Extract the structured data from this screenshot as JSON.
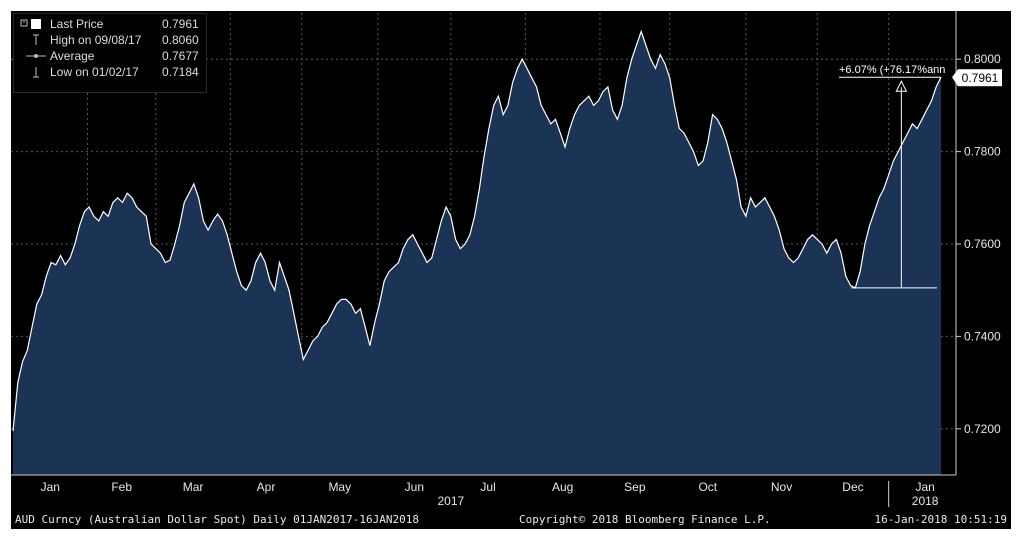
{
  "legend": {
    "last_price_label": "Last Price",
    "last_price_value": "0.7961",
    "high_label": "High on 09/08/17",
    "high_value": "0.8060",
    "average_label": "Average",
    "average_value": "0.7677",
    "low_label": "Low on 01/02/17",
    "low_value": "0.7184"
  },
  "footer": {
    "left": "AUD Curncy (Australian Dollar Spot)  Daily 01JAN2017-16JAN2018",
    "center": "Copyright© 2018 Bloomberg Finance L.P.",
    "right": "16-Jan-2018 10:51:19"
  },
  "colors": {
    "background": "#000000",
    "area_fill": "#1b3355",
    "line": "#ffffff",
    "grid": "#5a5a5a",
    "text": "#e6e6e6"
  },
  "chart_data": {
    "type": "area",
    "title": "",
    "xlabel": "",
    "ylabel": "",
    "ylim": [
      0.71,
      0.81
    ],
    "y_ticks": [
      "0.7200",
      "0.7400",
      "0.7600",
      "0.7800",
      "0.8000"
    ],
    "x_month_labels": [
      "Jan",
      "Feb",
      "Mar",
      "Apr",
      "May",
      "Jun",
      "Jul",
      "Aug",
      "Sep",
      "Oct",
      "Nov",
      "Dec",
      "Jan"
    ],
    "x_year_labels": [
      "2017",
      "2018"
    ],
    "grid": true,
    "last_value_label": "0.7961",
    "annotation": {
      "text": "+6.07% (+76.17%ann",
      "from_value": 0.7505,
      "to_value": 0.7961,
      "from_date": "2017-12-08",
      "to_date": "2018-01-16"
    },
    "series": [
      {
        "values": [
          [
            0,
            0.7195
          ],
          [
            3,
            0.73
          ],
          [
            6,
            0.7345
          ],
          [
            9,
            0.737
          ],
          [
            12,
            0.742
          ],
          [
            15,
            0.747
          ],
          [
            18,
            0.749
          ],
          [
            21,
            0.753
          ],
          [
            24,
            0.756
          ],
          [
            27,
            0.7555
          ],
          [
            30,
            0.7575
          ],
          [
            33,
            0.7555
          ],
          [
            36,
            0.757
          ],
          [
            39,
            0.76
          ],
          [
            42,
            0.764
          ],
          [
            45,
            0.767
          ],
          [
            48,
            0.768
          ],
          [
            51,
            0.766
          ],
          [
            54,
            0.765
          ],
          [
            57,
            0.767
          ],
          [
            60,
            0.766
          ],
          [
            63,
            0.769
          ],
          [
            66,
            0.77
          ],
          [
            69,
            0.769
          ],
          [
            72,
            0.771
          ],
          [
            75,
            0.77
          ],
          [
            78,
            0.768
          ],
          [
            81,
            0.767
          ],
          [
            84,
            0.766
          ],
          [
            87,
            0.76
          ],
          [
            90,
            0.759
          ],
          [
            93,
            0.758
          ],
          [
            96,
            0.756
          ],
          [
            99,
            0.7565
          ],
          [
            102,
            0.76
          ],
          [
            105,
            0.764
          ],
          [
            108,
            0.769
          ],
          [
            111,
            0.771
          ],
          [
            114,
            0.773
          ],
          [
            117,
            0.77
          ],
          [
            120,
            0.765
          ],
          [
            123,
            0.763
          ],
          [
            126,
            0.765
          ],
          [
            129,
            0.7665
          ],
          [
            132,
            0.765
          ],
          [
            135,
            0.762
          ],
          [
            138,
            0.758
          ],
          [
            141,
            0.754
          ],
          [
            144,
            0.751
          ],
          [
            147,
            0.75
          ],
          [
            150,
            0.752
          ],
          [
            153,
            0.756
          ],
          [
            156,
            0.758
          ],
          [
            159,
            0.756
          ],
          [
            162,
            0.752
          ],
          [
            165,
            0.75
          ],
          [
            168,
            0.756
          ],
          [
            171,
            0.753
          ],
          [
            174,
            0.75
          ],
          [
            177,
            0.745
          ],
          [
            180,
            0.74
          ],
          [
            183,
            0.735
          ],
          [
            186,
            0.737
          ],
          [
            189,
            0.739
          ],
          [
            192,
            0.74
          ],
          [
            195,
            0.742
          ],
          [
            198,
            0.743
          ],
          [
            201,
            0.745
          ],
          [
            204,
            0.747
          ],
          [
            207,
            0.748
          ],
          [
            210,
            0.748
          ],
          [
            213,
            0.747
          ],
          [
            216,
            0.745
          ],
          [
            219,
            0.746
          ],
          [
            222,
            0.742
          ],
          [
            225,
            0.738
          ],
          [
            228,
            0.743
          ],
          [
            231,
            0.747
          ],
          [
            234,
            0.752
          ],
          [
            237,
            0.754
          ],
          [
            240,
            0.755
          ],
          [
            243,
            0.756
          ],
          [
            246,
            0.759
          ],
          [
            249,
            0.761
          ],
          [
            252,
            0.762
          ],
          [
            255,
            0.76
          ],
          [
            258,
            0.758
          ],
          [
            261,
            0.756
          ],
          [
            264,
            0.757
          ],
          [
            267,
            0.761
          ],
          [
            270,
            0.765
          ],
          [
            273,
            0.768
          ],
          [
            276,
            0.766
          ],
          [
            279,
            0.761
          ],
          [
            282,
            0.759
          ],
          [
            285,
            0.76
          ],
          [
            288,
            0.762
          ],
          [
            291,
            0.766
          ],
          [
            294,
            0.772
          ],
          [
            297,
            0.779
          ],
          [
            300,
            0.785
          ],
          [
            303,
            0.79
          ],
          [
            306,
            0.792
          ],
          [
            309,
            0.788
          ],
          [
            312,
            0.79
          ],
          [
            315,
            0.795
          ],
          [
            318,
            0.798
          ],
          [
            321,
            0.8
          ],
          [
            324,
            0.798
          ],
          [
            327,
            0.796
          ],
          [
            330,
            0.794
          ],
          [
            333,
            0.79
          ],
          [
            336,
            0.788
          ],
          [
            339,
            0.786
          ],
          [
            342,
            0.787
          ],
          [
            345,
            0.784
          ],
          [
            348,
            0.781
          ],
          [
            351,
            0.785
          ],
          [
            354,
            0.788
          ],
          [
            357,
            0.79
          ],
          [
            360,
            0.791
          ],
          [
            363,
            0.792
          ],
          [
            366,
            0.79
          ],
          [
            369,
            0.791
          ],
          [
            372,
            0.793
          ],
          [
            375,
            0.794
          ],
          [
            378,
            0.789
          ],
          [
            381,
            0.787
          ],
          [
            384,
            0.79
          ],
          [
            387,
            0.796
          ],
          [
            390,
            0.8
          ],
          [
            393,
            0.803
          ],
          [
            396,
            0.806
          ],
          [
            399,
            0.803
          ],
          [
            402,
            0.8
          ],
          [
            405,
            0.798
          ],
          [
            408,
            0.801
          ],
          [
            411,
            0.799
          ],
          [
            414,
            0.796
          ],
          [
            417,
            0.79
          ],
          [
            420,
            0.785
          ],
          [
            423,
            0.784
          ],
          [
            426,
            0.782
          ],
          [
            429,
            0.78
          ],
          [
            432,
            0.777
          ],
          [
            435,
            0.778
          ],
          [
            438,
            0.782
          ],
          [
            441,
            0.788
          ],
          [
            444,
            0.787
          ],
          [
            447,
            0.785
          ],
          [
            450,
            0.782
          ],
          [
            453,
            0.778
          ],
          [
            456,
            0.774
          ],
          [
            459,
            0.768
          ],
          [
            462,
            0.766
          ],
          [
            465,
            0.77
          ],
          [
            468,
            0.768
          ],
          [
            471,
            0.769
          ],
          [
            474,
            0.77
          ],
          [
            477,
            0.768
          ],
          [
            480,
            0.766
          ],
          [
            483,
            0.763
          ],
          [
            486,
            0.759
          ],
          [
            489,
            0.757
          ],
          [
            492,
            0.756
          ],
          [
            495,
            0.757
          ],
          [
            498,
            0.759
          ],
          [
            501,
            0.761
          ],
          [
            504,
            0.762
          ],
          [
            507,
            0.761
          ],
          [
            510,
            0.76
          ],
          [
            513,
            0.758
          ],
          [
            516,
            0.76
          ],
          [
            519,
            0.761
          ],
          [
            522,
            0.758
          ],
          [
            525,
            0.753
          ],
          [
            528,
            0.751
          ],
          [
            531,
            0.7505
          ],
          [
            534,
            0.754
          ],
          [
            537,
            0.76
          ],
          [
            540,
            0.764
          ],
          [
            543,
            0.767
          ],
          [
            546,
            0.77
          ],
          [
            549,
            0.772
          ],
          [
            552,
            0.775
          ],
          [
            555,
            0.778
          ],
          [
            558,
            0.78
          ],
          [
            561,
            0.782
          ],
          [
            564,
            0.784
          ],
          [
            567,
            0.786
          ],
          [
            570,
            0.785
          ],
          [
            573,
            0.787
          ],
          [
            576,
            0.789
          ],
          [
            579,
            0.791
          ],
          [
            582,
            0.794
          ],
          [
            585,
            0.7961
          ]
        ],
        "x_units": "x-axis position in day index (0 = 2017-01-02, ~1.54 index units per calendar day scaled to axis)"
      }
    ]
  }
}
